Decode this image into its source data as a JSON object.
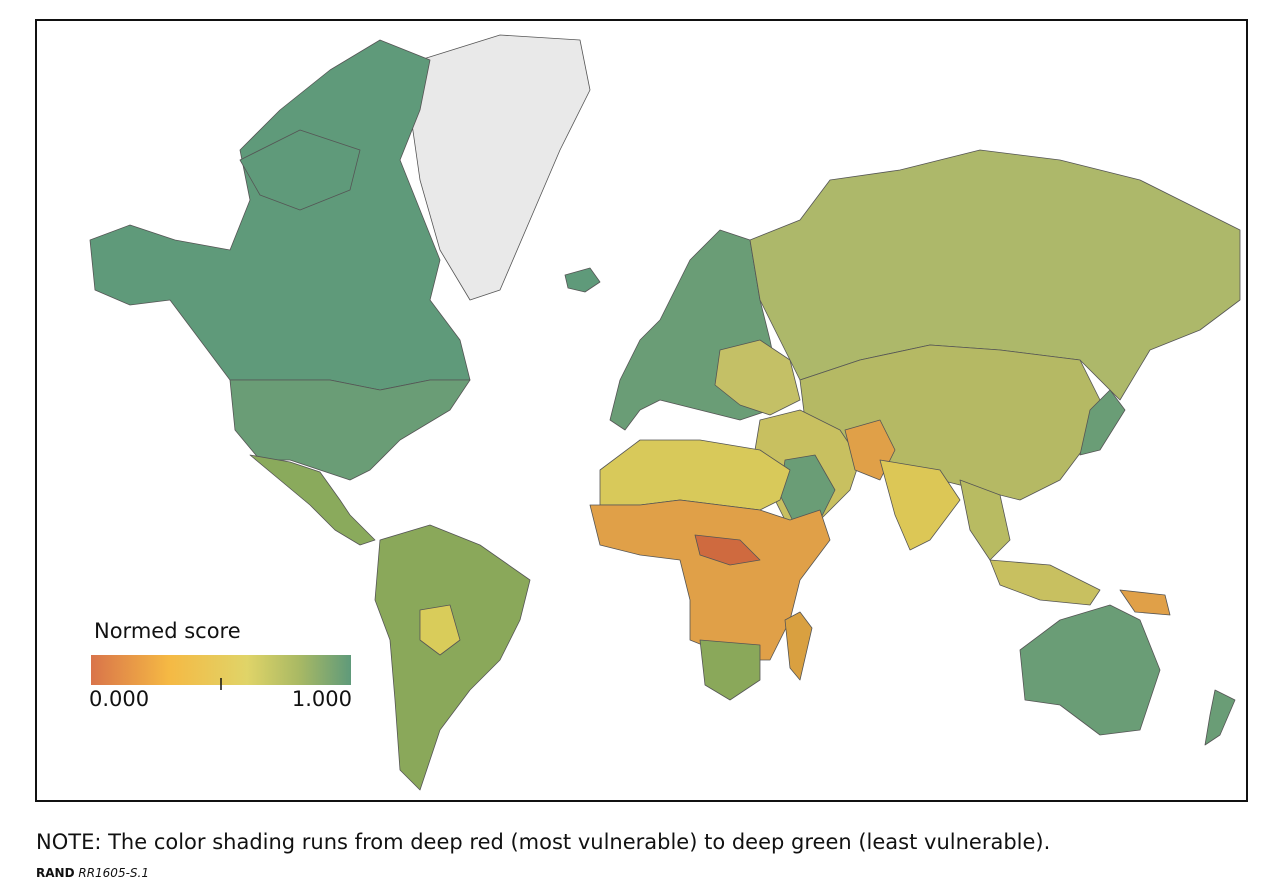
{
  "legend": {
    "title": "Normed score",
    "min_label": "0.000",
    "max_label": "1.000"
  },
  "note": "NOTE: The color shading runs from deep red (most vulnerable) to deep green (least vulnerable).",
  "source": {
    "org": "RAND",
    "id": "RR1605-S.1"
  }
}
